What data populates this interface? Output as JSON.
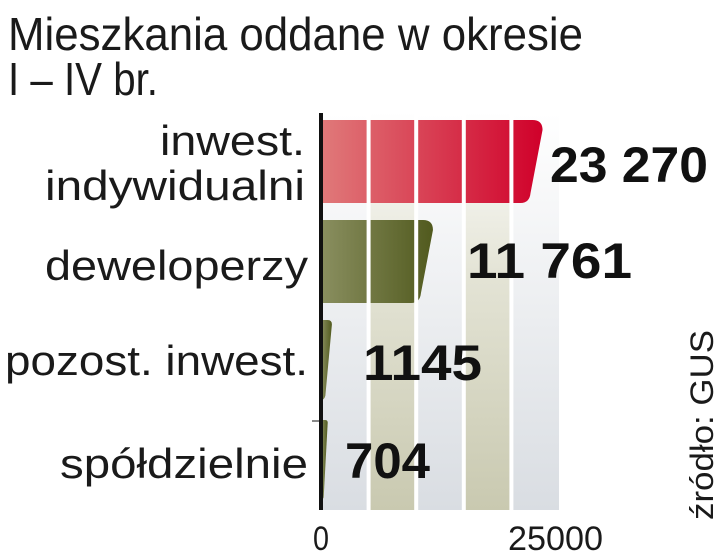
{
  "chart_data": {
    "type": "bar",
    "orientation": "horizontal",
    "title": "Mieszkania oddane w okresie",
    "subtitle": "I – IV br.",
    "categories": [
      "inwest. indywidualni",
      "deweloperzy",
      "pozost. inwest.",
      "spółdzielnie"
    ],
    "category_lines": [
      [
        "inwest.",
        "indywidualni"
      ],
      [
        "deweloperzy"
      ],
      [
        "pozost. inwest."
      ],
      [
        "spółdzielnie"
      ]
    ],
    "values": [
      23270,
      11761,
      1145,
      704
    ],
    "value_labels": [
      "23 270",
      "11 761",
      "1145",
      "704"
    ],
    "xlim": [
      0,
      25000
    ],
    "x_ticks": [
      "0",
      "25000"
    ],
    "grid": true,
    "source": "źródło: GUS",
    "colors": {
      "inwest. indywidualni": [
        "#e07a7a",
        "#d0002a"
      ],
      "other": [
        "#8a8f60",
        "#515a1e"
      ]
    }
  }
}
